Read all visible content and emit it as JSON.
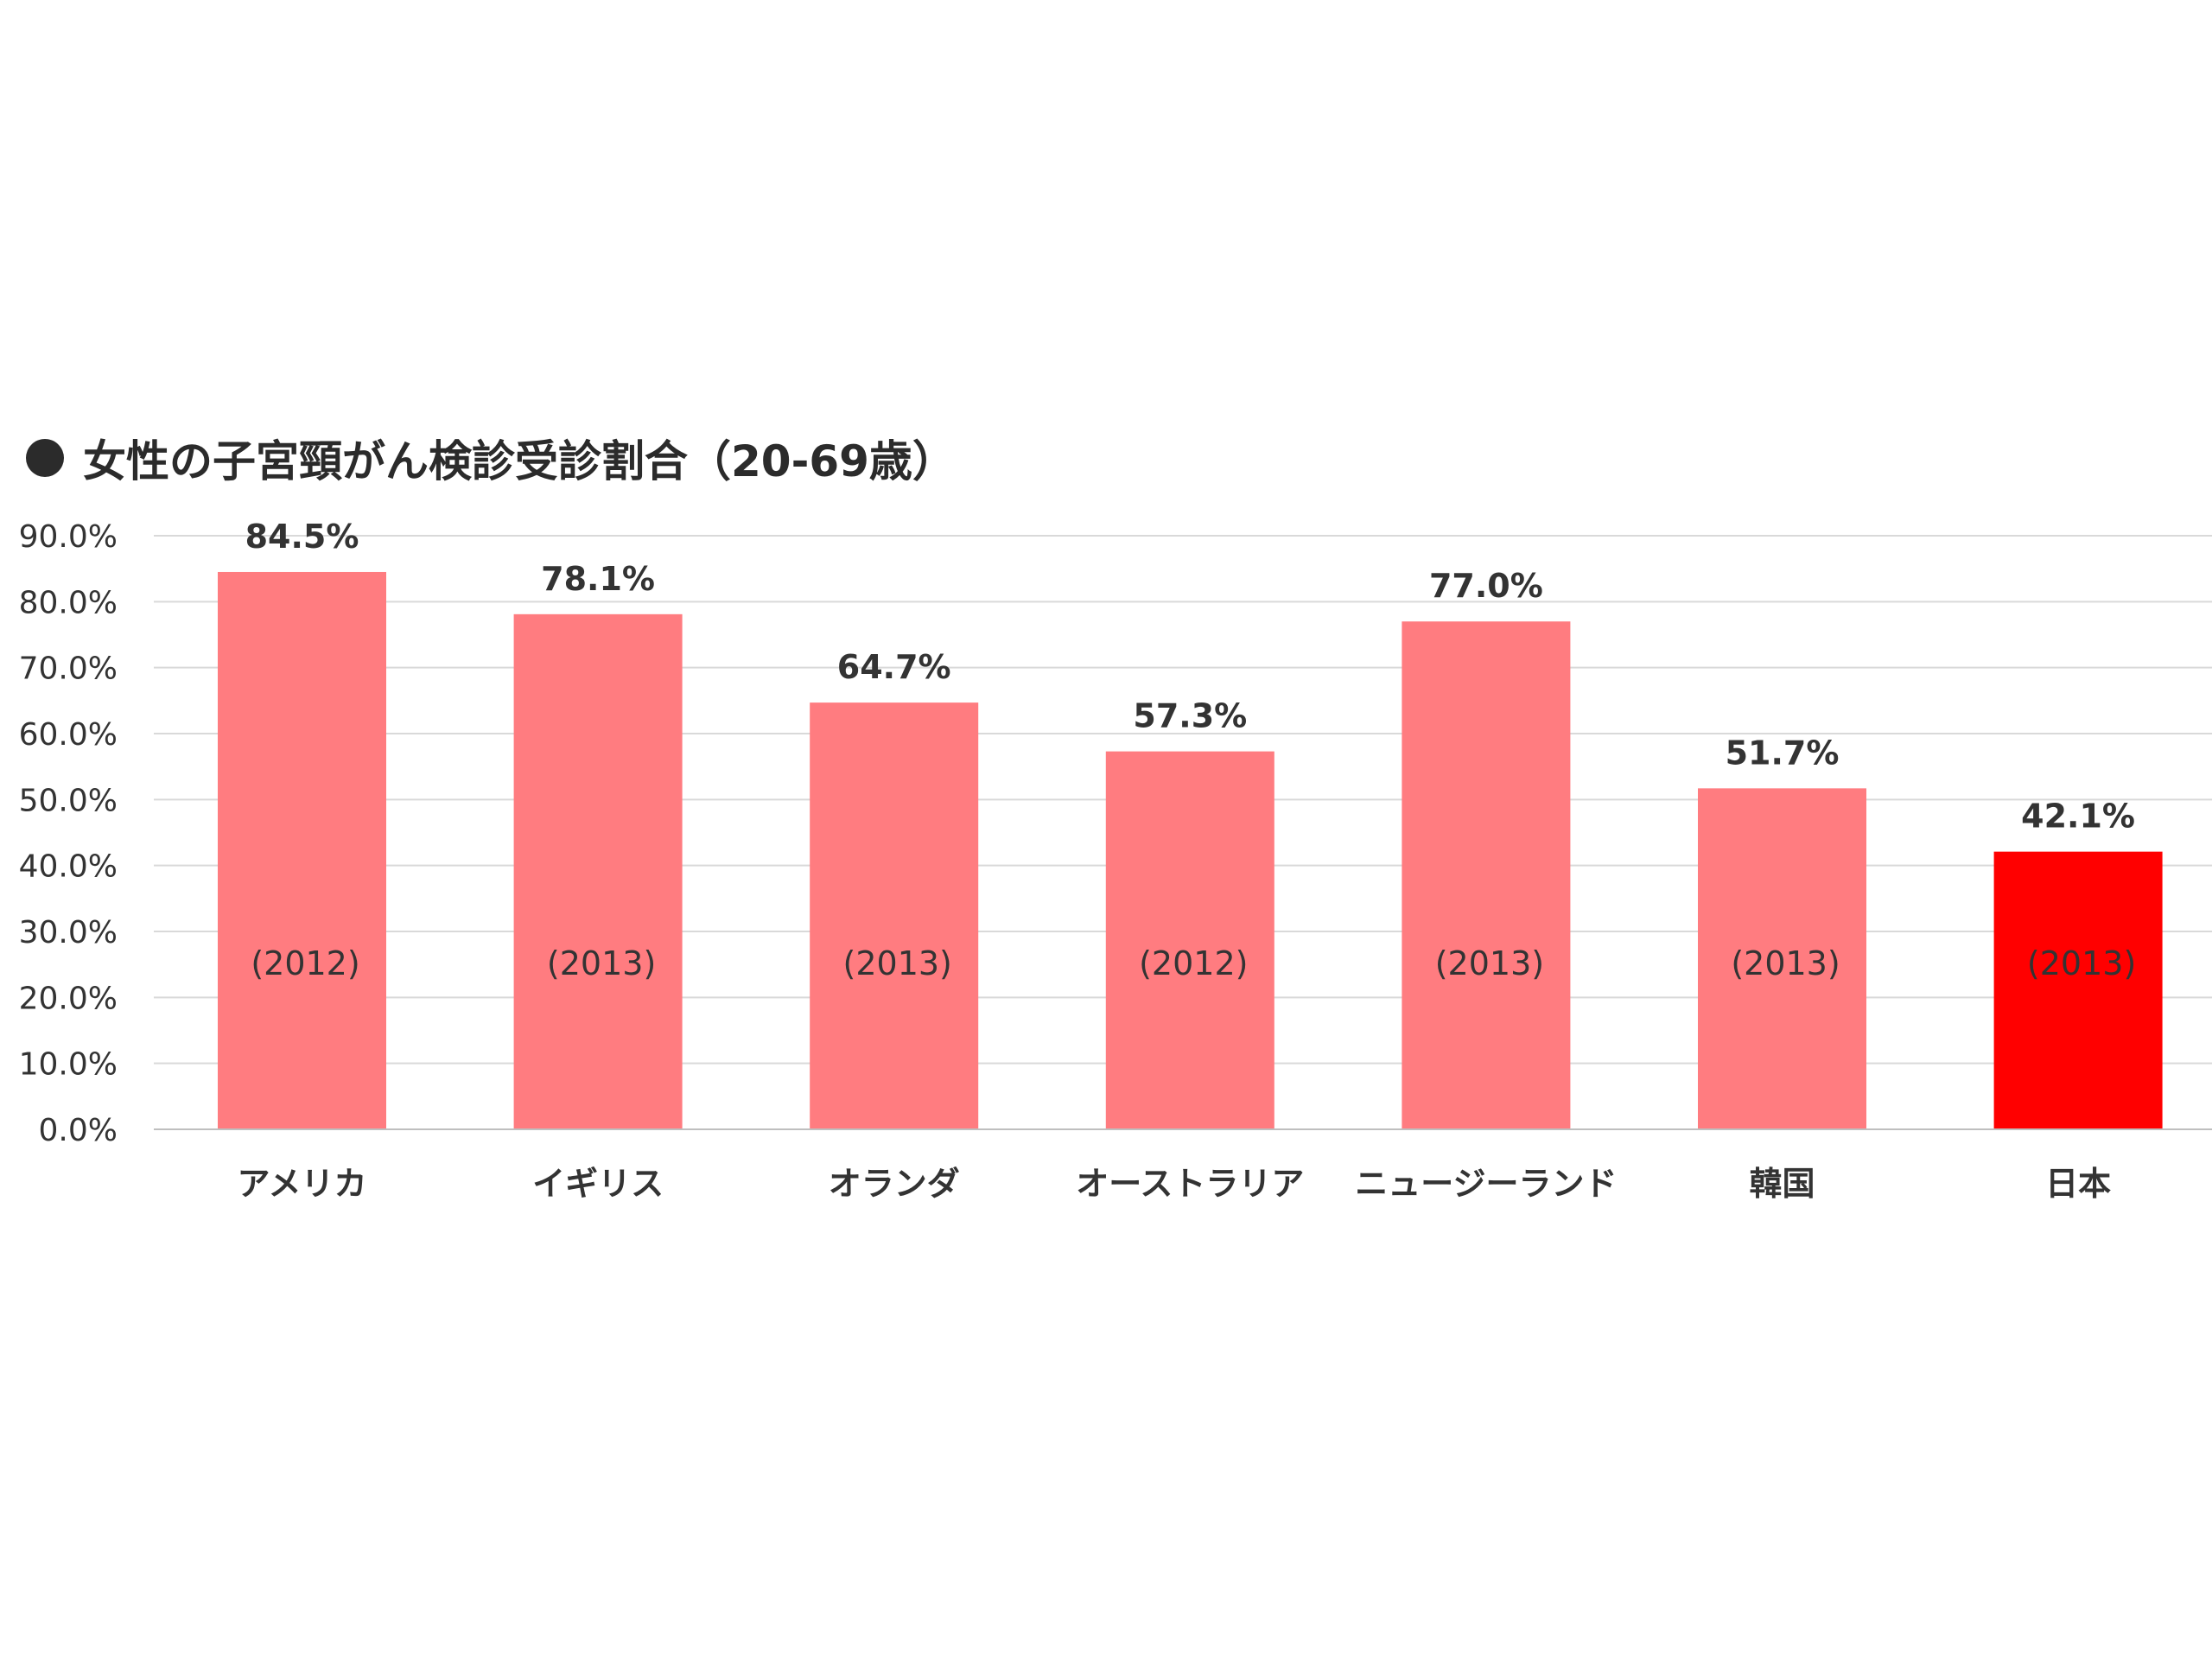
{
  "chart_data": {
    "type": "bar",
    "title": "女性の子宮頸がん検診受診割合（20-69歳）",
    "xlabel": "",
    "ylabel": "",
    "ylim": [
      0,
      90
    ],
    "yticks": [
      "0.0%",
      "10.0%",
      "20.0%",
      "30.0%",
      "40.0%",
      "50.0%",
      "60.0%",
      "70.0%",
      "80.0%",
      "90.0%"
    ],
    "grid": true,
    "legend": "none",
    "categories": [
      "アメリカ",
      "イギリス",
      "オランダ",
      "オーストラリア",
      "ニュージーランド",
      "韓国",
      "日本"
    ],
    "values": [
      84.5,
      78.1,
      64.7,
      57.3,
      77.0,
      51.7,
      42.1
    ],
    "value_labels": [
      "84.5%",
      "78.1%",
      "64.7%",
      "57.3%",
      "77.0%",
      "51.7%",
      "42.1%"
    ],
    "year_labels": [
      "(2012)",
      "(2013)",
      "(2013)",
      "(2012)",
      "(2013)",
      "(2013)",
      "(2013)"
    ],
    "colors": {
      "default_bar": "#ff7c80",
      "highlight_bar": "#ff0000",
      "highlight_category": "日本",
      "gridline": "#d9d9d9",
      "axis": "#bfbfbf"
    }
  }
}
